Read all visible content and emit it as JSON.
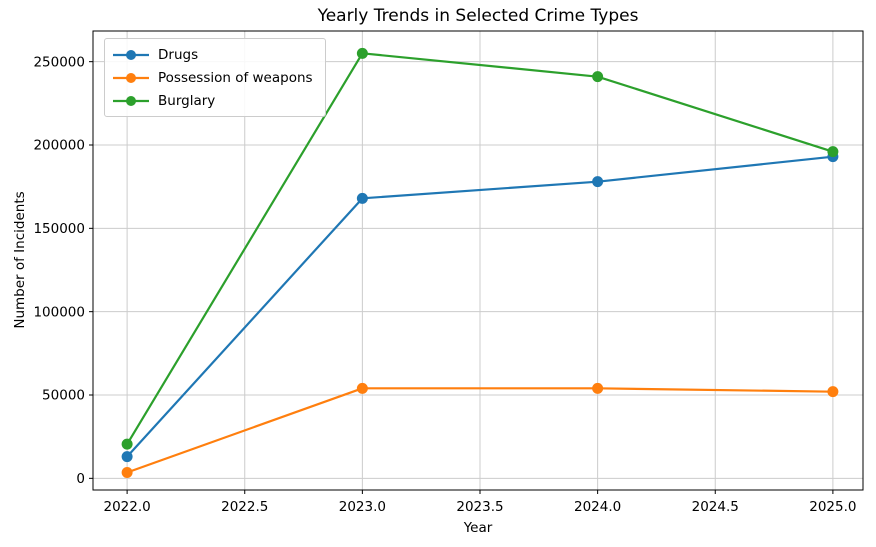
{
  "chart_data": {
    "type": "line",
    "title": "Yearly Trends in Selected Crime Types",
    "xlabel": "Year",
    "ylabel": "Number of Incidents",
    "x": [
      2022,
      2023,
      2024,
      2025
    ],
    "series": [
      {
        "name": "Drugs",
        "color": "#1f77b4",
        "values": [
          13000,
          168000,
          178000,
          193000
        ]
      },
      {
        "name": "Possession of weapons",
        "color": "#ff7f0e",
        "values": [
          3500,
          54000,
          54000,
          52000
        ]
      },
      {
        "name": "Burglary",
        "color": "#2ca02c",
        "values": [
          20500,
          255000,
          241000,
          196000
        ]
      }
    ],
    "x_ticks": [
      2022.0,
      2022.5,
      2023.0,
      2023.5,
      2024.0,
      2024.5,
      2025.0
    ],
    "x_tick_labels": [
      "2022.0",
      "2022.5",
      "2023.0",
      "2023.5",
      "2024.0",
      "2024.5",
      "2025.0"
    ],
    "y_ticks": [
      0,
      50000,
      100000,
      150000,
      200000,
      250000
    ],
    "y_tick_labels": [
      "0",
      "50000",
      "100000",
      "150000",
      "200000",
      "250000"
    ],
    "xlim": [
      2021.855,
      2025.128
    ],
    "ylim": [
      -7000,
      268400
    ],
    "grid": true,
    "legend_position": "upper left",
    "grid_color": "#cccccc",
    "axis_color": "#000000",
    "background_color": "#ffffff"
  }
}
